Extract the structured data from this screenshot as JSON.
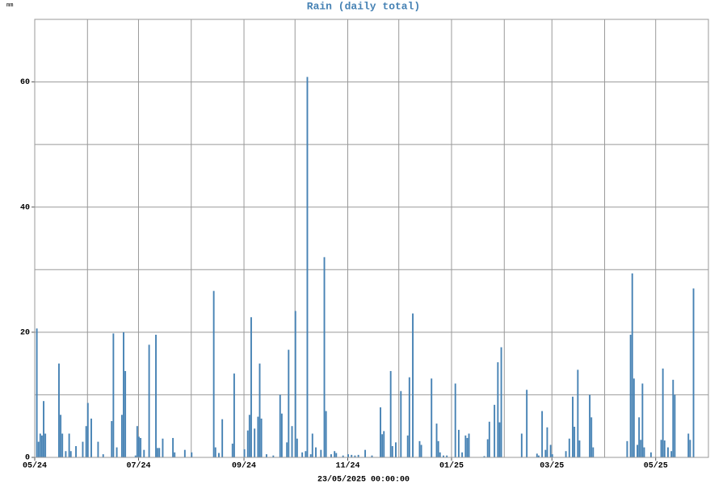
{
  "chart_data": {
    "type": "bar",
    "title": "Rain (daily total)",
    "y_unit": "mm",
    "x_label": "23/05/2025 00:00:00",
    "color": "#4682b4",
    "grid": true,
    "xlim": [
      0,
      396
    ],
    "ylim": [
      0,
      70
    ],
    "xticks": [
      {
        "value": 0,
        "label": "05/24"
      },
      {
        "value": 61,
        "label": "07/24"
      },
      {
        "value": 123,
        "label": "09/24"
      },
      {
        "value": 184,
        "label": "11/24"
      },
      {
        "value": 245,
        "label": "01/25"
      },
      {
        "value": 304,
        "label": "03/25"
      },
      {
        "value": 365,
        "label": "05/25"
      }
    ],
    "yticks": [
      0,
      20,
      40,
      60
    ],
    "grid_x": [
      0,
      31,
      61,
      92,
      123,
      153,
      184,
      214,
      245,
      276,
      304,
      335,
      365,
      396
    ],
    "grid_y": [
      0,
      10,
      20,
      30,
      40,
      50,
      60,
      70
    ],
    "x": [
      1,
      2,
      3,
      4,
      5,
      6,
      14,
      15,
      16,
      18,
      20,
      21,
      24,
      28,
      30,
      31,
      33,
      37,
      40,
      45,
      46,
      48,
      51,
      52,
      53,
      59,
      60,
      61,
      62,
      64,
      67,
      71,
      72,
      73,
      75,
      81,
      82,
      88,
      92,
      105,
      106,
      108,
      110,
      116,
      117,
      123,
      125,
      126,
      127,
      129,
      131,
      132,
      133,
      136,
      140,
      144,
      145,
      148,
      149,
      151,
      153,
      154,
      157,
      159,
      160,
      162,
      163,
      165,
      168,
      170,
      171,
      174,
      176,
      177,
      181,
      184,
      186,
      188,
      190,
      194,
      198,
      203,
      204,
      205,
      209,
      210,
      212,
      215,
      219,
      220,
      222,
      226,
      227,
      233,
      236,
      237,
      238,
      240,
      242,
      247,
      249,
      251,
      253,
      254,
      255,
      264,
      266,
      267,
      270,
      272,
      273,
      274,
      286,
      289,
      295,
      296,
      298,
      300,
      301,
      303,
      304,
      312,
      314,
      316,
      317,
      319,
      320,
      326,
      327,
      328,
      348,
      350,
      351,
      352,
      354,
      355,
      356,
      357,
      358,
      362,
      368,
      369,
      370,
      372,
      374,
      375,
      376,
      384,
      385,
      387
    ],
    "values": [
      20.6,
      2.5,
      3.8,
      3.5,
      9,
      3.8,
      15,
      6.8,
      3.8,
      1,
      3.8,
      1,
      1.8,
      2.5,
      5,
      8.7,
      6.2,
      2.5,
      0.5,
      5.8,
      19.8,
      1.6,
      6.8,
      20,
      13.8,
      0.3,
      5,
      3.3,
      3.1,
      1.2,
      18,
      19.6,
      1.5,
      1.5,
      3,
      3.1,
      0.8,
      1.2,
      0.8,
      26.6,
      1.6,
      0.7,
      6.1,
      2.2,
      13.4,
      1.3,
      4.3,
      6.8,
      22.4,
      4.6,
      6.5,
      15,
      6.2,
      0.5,
      0.3,
      10,
      7,
      2.4,
      17.2,
      5,
      23.4,
      3,
      0.8,
      1,
      60.8,
      0.5,
      3.8,
      1.6,
      1.2,
      32,
      7.4,
      0.5,
      1,
      0.7,
      0.3,
      0.5,
      0.4,
      0.3,
      0.4,
      1.2,
      0.3,
      8,
      3.7,
      4.2,
      13.8,
      1.8,
      2.4,
      10.6,
      3.5,
      12.8,
      23,
      2.6,
      2,
      12.6,
      5.4,
      2.6,
      0.8,
      0.3,
      0.3,
      11.8,
      4.4,
      0.8,
      3.5,
      3.1,
      3.8,
      0.2,
      2.9,
      5.7,
      8.4,
      15.2,
      5.6,
      17.6,
      3.8,
      10.8,
      0.6,
      0.3,
      7.4,
      1.2,
      4.8,
      2,
      0.5,
      1,
      3,
      9.7,
      4.9,
      14,
      2.7,
      10,
      6.4,
      1.6,
      2.6,
      19.6,
      29.4,
      12.6,
      2,
      6.4,
      2.8,
      11.8,
      1.6,
      0.8,
      2.8,
      14.2,
      2.7,
      1.6,
      1,
      12.4,
      10,
      3.8,
      2.8,
      27
    ]
  }
}
